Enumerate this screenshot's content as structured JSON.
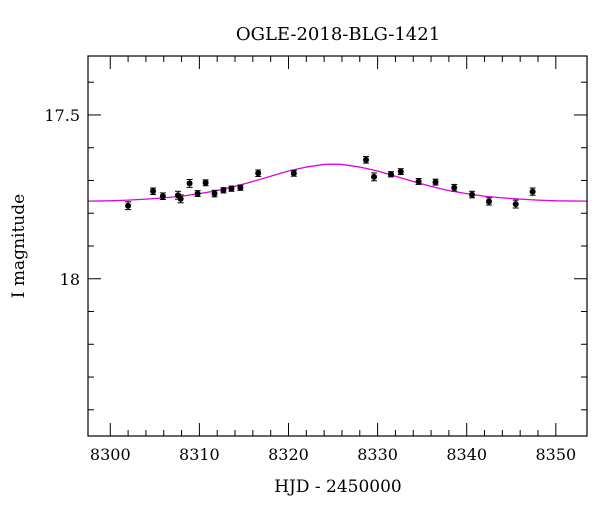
{
  "chart_data": {
    "type": "scatter",
    "title": "OGLE-2018-BLG-1421",
    "xlabel": "HJD - 2450000",
    "ylabel": "I magnitude",
    "xlim": [
      8297.5,
      8353.5
    ],
    "ylim": [
      18.48,
      17.32
    ],
    "y_inverted": true,
    "x_ticks": [
      8300,
      8310,
      8320,
      8330,
      8340,
      8350
    ],
    "x_tick_labels": [
      "8300",
      "8310",
      "8320",
      "8330",
      "8340",
      "8350"
    ],
    "y_ticks": [
      17.5,
      18
    ],
    "y_tick_labels": [
      "17.5",
      "18"
    ],
    "grid": false,
    "model_color": "#e000e0",
    "points": [
      {
        "x": 8302.0,
        "y": 17.777,
        "err": 0.012
      },
      {
        "x": 8304.8,
        "y": 17.733,
        "err": 0.01
      },
      {
        "x": 8305.9,
        "y": 17.748,
        "err": 0.01
      },
      {
        "x": 8307.6,
        "y": 17.745,
        "err": 0.012
      },
      {
        "x": 8307.9,
        "y": 17.756,
        "err": 0.012
      },
      {
        "x": 8308.9,
        "y": 17.709,
        "err": 0.012
      },
      {
        "x": 8309.8,
        "y": 17.74,
        "err": 0.009
      },
      {
        "x": 8310.7,
        "y": 17.707,
        "err": 0.009
      },
      {
        "x": 8311.7,
        "y": 17.74,
        "err": 0.01
      },
      {
        "x": 8312.7,
        "y": 17.73,
        "err": 0.008
      },
      {
        "x": 8313.6,
        "y": 17.725,
        "err": 0.008
      },
      {
        "x": 8314.6,
        "y": 17.722,
        "err": 0.008
      },
      {
        "x": 8316.6,
        "y": 17.678,
        "err": 0.01
      },
      {
        "x": 8320.6,
        "y": 17.678,
        "err": 0.009
      },
      {
        "x": 8328.7,
        "y": 17.637,
        "err": 0.01
      },
      {
        "x": 8329.6,
        "y": 17.689,
        "err": 0.012
      },
      {
        "x": 8331.5,
        "y": 17.681,
        "err": 0.008
      },
      {
        "x": 8332.6,
        "y": 17.673,
        "err": 0.009
      },
      {
        "x": 8334.6,
        "y": 17.703,
        "err": 0.009
      },
      {
        "x": 8336.5,
        "y": 17.705,
        "err": 0.009
      },
      {
        "x": 8338.6,
        "y": 17.722,
        "err": 0.01
      },
      {
        "x": 8340.6,
        "y": 17.743,
        "err": 0.01
      },
      {
        "x": 8342.5,
        "y": 17.764,
        "err": 0.011
      },
      {
        "x": 8345.5,
        "y": 17.772,
        "err": 0.012
      },
      {
        "x": 8347.4,
        "y": 17.734,
        "err": 0.011
      }
    ],
    "model": {
      "x": [
        8297.5,
        8300,
        8302,
        8304,
        8306,
        8308,
        8310,
        8312,
        8314,
        8316,
        8318,
        8320,
        8322,
        8324,
        8325,
        8326,
        8328,
        8330,
        8332,
        8334,
        8336,
        8338,
        8340,
        8342,
        8344,
        8346,
        8348,
        8350,
        8353.5
      ],
      "y": [
        17.763,
        17.762,
        17.76,
        17.757,
        17.753,
        17.748,
        17.74,
        17.731,
        17.718,
        17.703,
        17.687,
        17.671,
        17.659,
        17.651,
        17.65,
        17.651,
        17.659,
        17.671,
        17.687,
        17.703,
        17.718,
        17.731,
        17.74,
        17.748,
        17.753,
        17.757,
        17.76,
        17.762,
        17.763
      ]
    }
  }
}
